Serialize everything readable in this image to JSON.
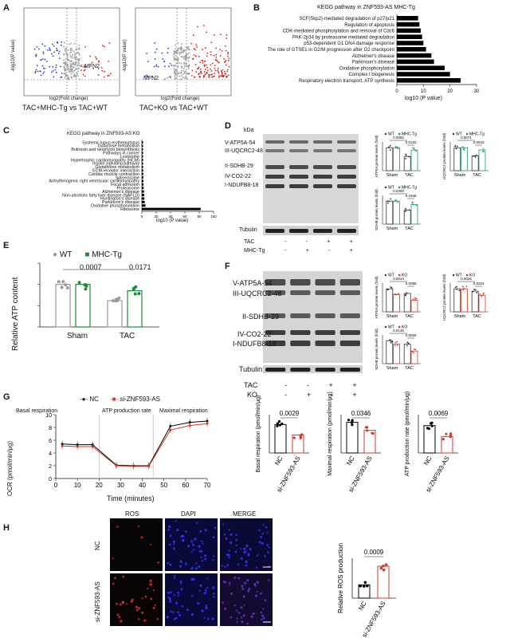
{
  "panels": {
    "A": {
      "letter": "A",
      "plot1": {
        "ylabel": "-log10(P value)",
        "xlabel": "log2(Fold change)",
        "gene": "MFN2",
        "caption": "TAC+MHC-Tg vs TAC+WT"
      },
      "plot2": {
        "ylabel": "-log10(P value)",
        "xlabel": "log2(Fold change)",
        "gene": "MFN2",
        "caption": "TAC+KO vs TAC+WT"
      }
    },
    "B": {
      "letter": "B",
      "title": "KEGG pathway in ZNF593-AS MHC-Tg",
      "xlabel": "log10 (P value)",
      "ticks": [
        "0",
        "10",
        "20",
        "30"
      ]
    },
    "C": {
      "letter": "C",
      "title": "KEGG pathway in ZNF593-AS KO",
      "xlabel": "log10 (P value)",
      "ticks": [
        "0",
        "20",
        "40",
        "60",
        "80",
        "100"
      ]
    },
    "D": {
      "letter": "D",
      "kda": "kDa",
      "bands": [
        "V-ATP5A-54",
        "III-UQCRC2-48",
        "II-SDHB-29",
        "IV-CO2-22",
        "I-NDUFB8-18",
        "Tubulin"
      ],
      "row1_label": "TAC",
      "row1": [
        "-",
        "-",
        "+",
        "+"
      ],
      "row2_label": "MHC-Tg",
      "row2": [
        "-",
        "+",
        "-",
        "+"
      ],
      "legend_a": "WT",
      "legend_b": "MHC-Tg",
      "groups": [
        "Sham",
        "TAC"
      ],
      "q1": {
        "ylabel": "ATP5A protein levels (fold)",
        "p1": "0.0082",
        "p2": "0.0132"
      },
      "q2": {
        "ylabel": "UQCRC2 protein levels (fold)",
        "p1": "0.0071",
        "p2": "0.0043"
      },
      "q3": {
        "ylabel": "SDHB protein levels (fold)",
        "p1": "0.0300",
        "p2": "0.1848"
      }
    },
    "E": {
      "letter": "E",
      "legend_a": "WT",
      "legend_b": "MHC-Tg",
      "ylabel": "Relative ATP content",
      "p1": "0.0007",
      "p2": "0.0171",
      "groups": [
        "Sham",
        "TAC"
      ]
    },
    "F": {
      "letter": "F",
      "bands": [
        "V-ATP5A-54",
        "III-UQCRC2-48",
        "II-SDHB-29",
        "IV-CO2-22",
        "I-NDUFB8-18",
        "Tubulin"
      ],
      "row1_label": "TAC",
      "row1": [
        "-",
        "-",
        "+",
        "+"
      ],
      "row2_label": "KO",
      "row2": [
        "-",
        "+",
        "-",
        "+"
      ],
      "legend_a": "WT",
      "legend_b": "KO",
      "groups": [
        "Sham",
        "TAC"
      ],
      "q1": {
        "ylabel": "ATP5A protein levels (fold)",
        "p1": "0.0014",
        "p2": "0.0095"
      },
      "q2": {
        "ylabel": "UQCRC2 protein levels (fold)",
        "p1": "0.0026",
        "p2": "0.0324"
      },
      "q3": {
        "ylabel": "SDHB protein levels (fold)",
        "p1": "0.0145",
        "p2": "0.0056"
      }
    },
    "G": {
      "letter": "G",
      "legend_a": "NC",
      "legend_b": "si-ZNF593-AS",
      "phases": [
        "Basal respiration",
        "ATP production rate",
        "Maximal respiration"
      ],
      "ocr_ylabel": "OCR (pmol/min/μg)",
      "ocr_xlabel": "Time (minutes)",
      "xticks": [
        "0",
        "10",
        "20",
        "30",
        "40",
        "50",
        "60",
        "70"
      ],
      "yticks": [
        "0",
        "2",
        "4",
        "6",
        "8",
        "10"
      ],
      "bars": [
        {
          "ylabel": "Basal respiration (pmol/min/μg)",
          "p": "0.0029"
        },
        {
          "ylabel": "Maximal respiration (pmol/min/μg)",
          "p": "0.0346"
        },
        {
          "ylabel": "ATP production rate (pmol/min/μg)",
          "p": "0.0069"
        }
      ],
      "xcat_a": "NC",
      "xcat_b": "si-ZNF593-AS"
    },
    "H": {
      "letter": "H",
      "cols": [
        "ROS",
        "DAPI",
        "MERGE"
      ],
      "rows": [
        "NC",
        "si-ZNF593-AS"
      ],
      "ylabel": "Relative ROS production",
      "p": "0.0009",
      "xcat_a": "NC",
      "xcat_b": "si-ZNF593-AS"
    }
  },
  "chart_data": [
    {
      "type": "bar",
      "title": "KEGG pathway in ZNF593-AS MHC-Tg",
      "xlabel": "log10 (P value)",
      "orientation": "horizontal",
      "xlim": [
        0,
        30
      ],
      "categories": [
        "SCF(Skp2)-mediated degradation of p27/p21",
        "Regulation of apoptosis",
        "CDK-mediated phosphorylation and removal of Cdc6",
        "PAK-2p34 by proteasome mediated degradation",
        "p53-dependent G1 DNA damage response",
        "The role of GTSE1 in G2/M progression after G2 checkpoint",
        "Alzheimer's disease",
        "Parkinson's disease",
        "Oxidative phosphorylation",
        "Complex I biogenesis",
        "Respiratory electron transport, ATP synthesis"
      ],
      "values": [
        8,
        8.5,
        9,
        9.5,
        10,
        11,
        13,
        14,
        18,
        20,
        24
      ]
    },
    {
      "type": "bar",
      "title": "KEGG pathway in ZNF593-AS KO",
      "xlabel": "log10 (P value)",
      "orientation": "horizontal",
      "xlim": [
        0,
        100
      ],
      "categories": [
        "Systemic lupus erythematosus",
        "Galactose metabolism",
        "Butirosin and neomycin biosynthesis",
        "Pathways in cancer",
        "Lysosome",
        "Hypertrophic cardiomyopathy (HCM)",
        "Insulin signaling pathway",
        "Glutathione metabolism",
        "ECM-receptor interaction",
        "Cardiac muscle contraction",
        "Spliceosome",
        "Arrhythmogenic right ventricular cardiomyopathy",
        "Focal adhesion",
        "Proteasome",
        "Alzheimer's disease",
        "Non-alcoholic fatty liver disease (NAFLD)",
        "Huntington's disease",
        "Parkinson's disease",
        "Oxidative phosphorylation",
        "Ribosome"
      ],
      "values": [
        1,
        1,
        1.2,
        1.3,
        1.5,
        1.6,
        1.7,
        1.8,
        1.9,
        2,
        2.1,
        2.2,
        2.3,
        2.5,
        3,
        3.2,
        3.5,
        4,
        5,
        82
      ]
    },
    {
      "type": "bar",
      "title": "",
      "ylabel": "Relative ATP content",
      "categories": [
        "Sham",
        "TAC"
      ],
      "series": [
        {
          "name": "WT",
          "values": [
            1.0,
            0.62
          ]
        },
        {
          "name": "MHC-Tg",
          "values": [
            1.0,
            0.85
          ]
        }
      ],
      "ylim": [
        0,
        1.5
      ]
    },
    {
      "type": "line",
      "ylabel": "OCR (pmol/min/μg)",
      "xlabel": "Time (minutes)",
      "xlim": [
        0,
        70
      ],
      "ylim": [
        0,
        10
      ],
      "x": [
        3,
        10,
        17,
        28,
        36,
        43,
        53,
        62,
        70
      ],
      "series": [
        {
          "name": "NC",
          "values": [
            5.4,
            5.3,
            5.3,
            2.1,
            2.0,
            2.0,
            8.2,
            8.8,
            9.0
          ]
        },
        {
          "name": "si-ZNF593-AS",
          "values": [
            5.1,
            5.0,
            5.0,
            2.0,
            1.9,
            1.9,
            7.6,
            8.3,
            8.6
          ]
        }
      ]
    },
    {
      "type": "bar",
      "ylabel": "Basal respiration (pmol/min/μg)",
      "categories": [
        "NC",
        "si-ZNF593-AS"
      ],
      "values": [
        5.2,
        3.3
      ]
    },
    {
      "type": "bar",
      "ylabel": "Maximal respiration (pmol/min/μg)",
      "categories": [
        "NC",
        "si-ZNF593-AS"
      ],
      "values": [
        8.8,
        6.5
      ]
    },
    {
      "type": "bar",
      "ylabel": "ATP production rate (pmol/min/μg)",
      "categories": [
        "NC",
        "si-ZNF593-AS"
      ],
      "values": [
        5.0,
        3.0
      ]
    },
    {
      "type": "bar",
      "ylabel": "Relative ROS production",
      "categories": [
        "NC",
        "si-ZNF593-AS"
      ],
      "values": [
        1.0,
        2.4
      ]
    }
  ]
}
